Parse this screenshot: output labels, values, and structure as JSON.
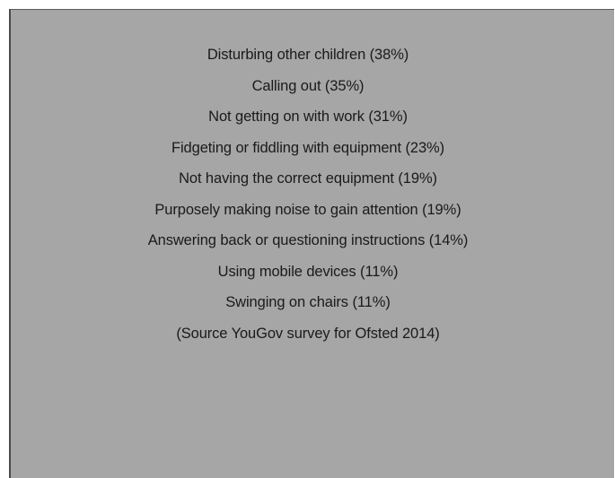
{
  "items": [
    "Disturbing other children (38%)",
    "Calling out (35%)",
    "Not getting on with work (31%)",
    "Fidgeting or fiddling with equipment (23%)",
    "Not having the correct equipment (19%)",
    "Purposely making noise to gain attention (19%)",
    "Answering back or questioning instructions (14%)",
    "Using mobile devices (11%)",
    "Swinging on chairs (11%)"
  ],
  "source": "(Source YouGov survey for Ofsted 2014)",
  "colors": {
    "panel_background": "#a6a6a6",
    "text": "#1a1a1a"
  }
}
